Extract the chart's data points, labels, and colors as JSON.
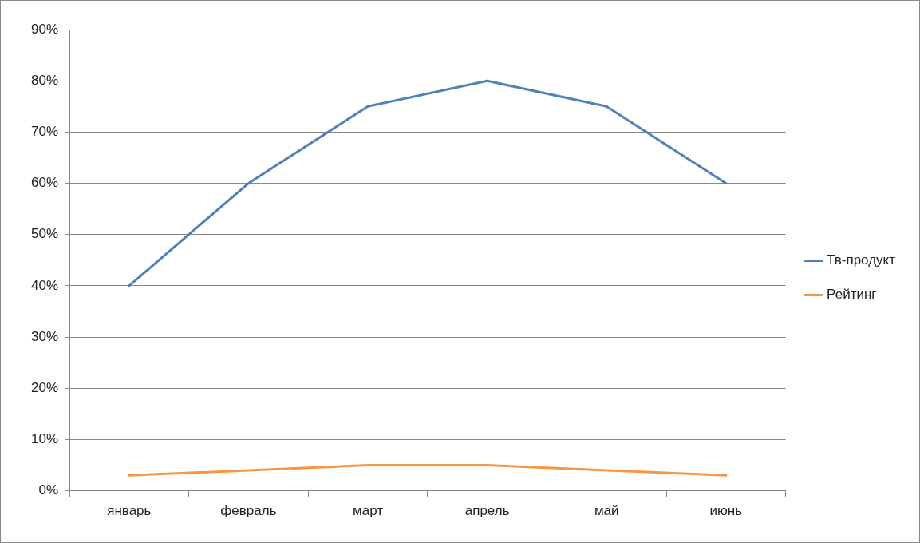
{
  "chart_data": {
    "type": "line",
    "categories": [
      "январь",
      "февраль",
      "март",
      "апрель",
      "май",
      "июнь"
    ],
    "series": [
      {
        "name": "Тв-продукт",
        "color": "#4f81bd",
        "values": [
          40,
          60,
          75,
          80,
          75,
          60
        ]
      },
      {
        "name": "Рейтинг",
        "color": "#f79646",
        "values": [
          3,
          4,
          5,
          5,
          4,
          3
        ]
      }
    ],
    "ylim": [
      0,
      90
    ],
    "yticks": [
      {
        "value": 0,
        "label": "0%"
      },
      {
        "value": 10,
        "label": "10%"
      },
      {
        "value": 20,
        "label": "20%"
      },
      {
        "value": 30,
        "label": "30%"
      },
      {
        "value": 40,
        "label": "40%"
      },
      {
        "value": 50,
        "label": "50%"
      },
      {
        "value": 60,
        "label": "60%"
      },
      {
        "value": 70,
        "label": "70%"
      },
      {
        "value": 80,
        "label": "80%"
      },
      {
        "value": 90,
        "label": "90%"
      }
    ],
    "grid": "y",
    "legend": "right",
    "marker": "none",
    "line_style": "solid"
  }
}
